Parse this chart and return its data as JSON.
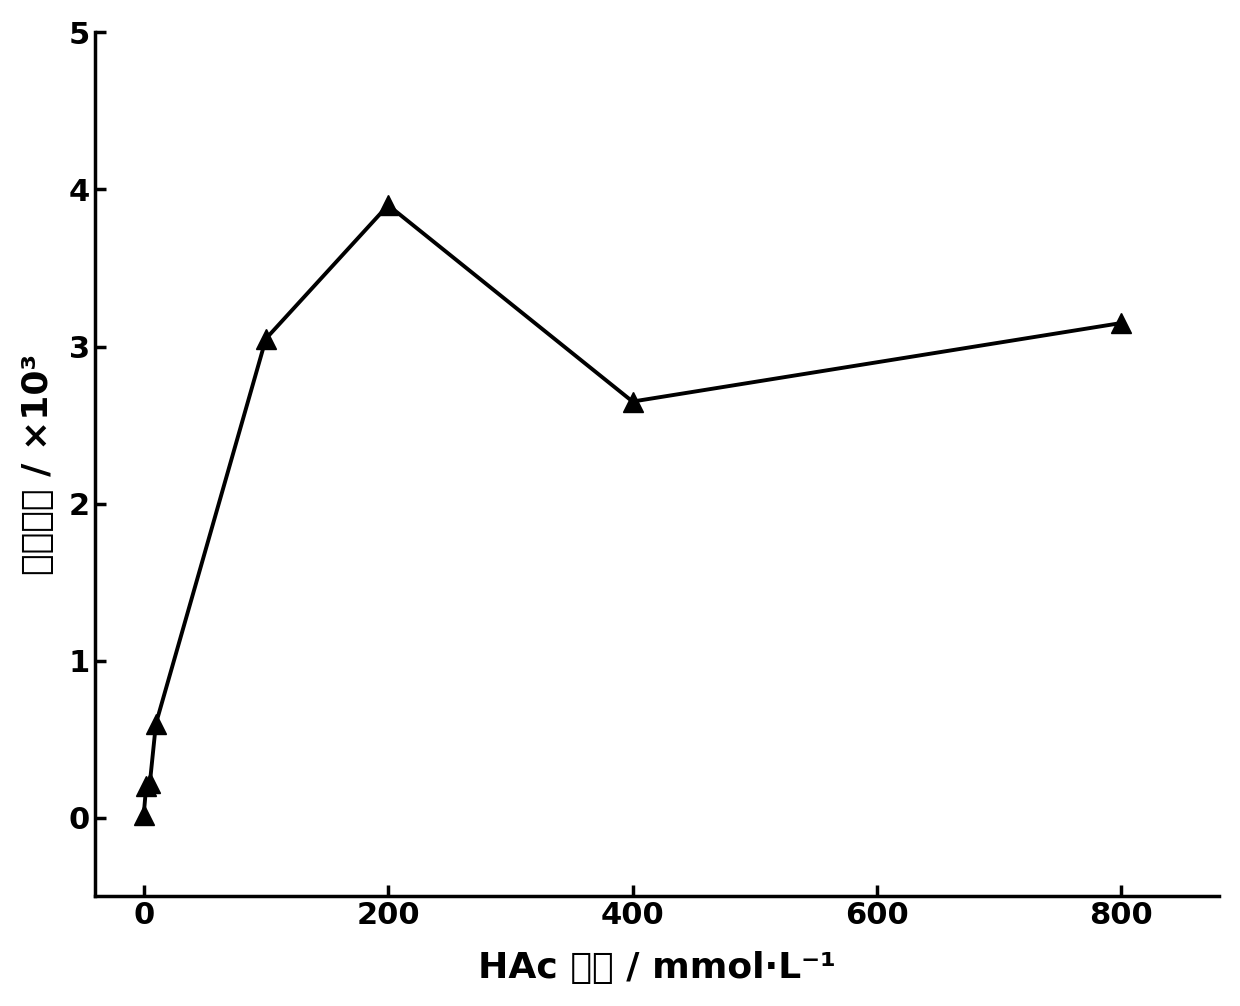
{
  "x_data": [
    0,
    2,
    5,
    10,
    100,
    200,
    400,
    800
  ],
  "y_data": [
    0.02,
    0.2,
    0.22,
    0.6,
    3.05,
    3.9,
    2.65,
    3.15
  ],
  "xlabel": "HAc 浓度 / mmol·L⁻¹",
  "ylabel": "颜色强度 / ×10³",
  "xlim": [
    -40,
    880
  ],
  "ylim": [
    -0.5,
    5.0
  ],
  "xticks": [
    0,
    200,
    400,
    600,
    800
  ],
  "yticks": [
    0,
    1,
    2,
    3,
    4,
    5
  ],
  "marker_color": "black",
  "line_color": "black",
  "background_color": "white",
  "label_fontsize": 26,
  "tick_fontsize": 22
}
